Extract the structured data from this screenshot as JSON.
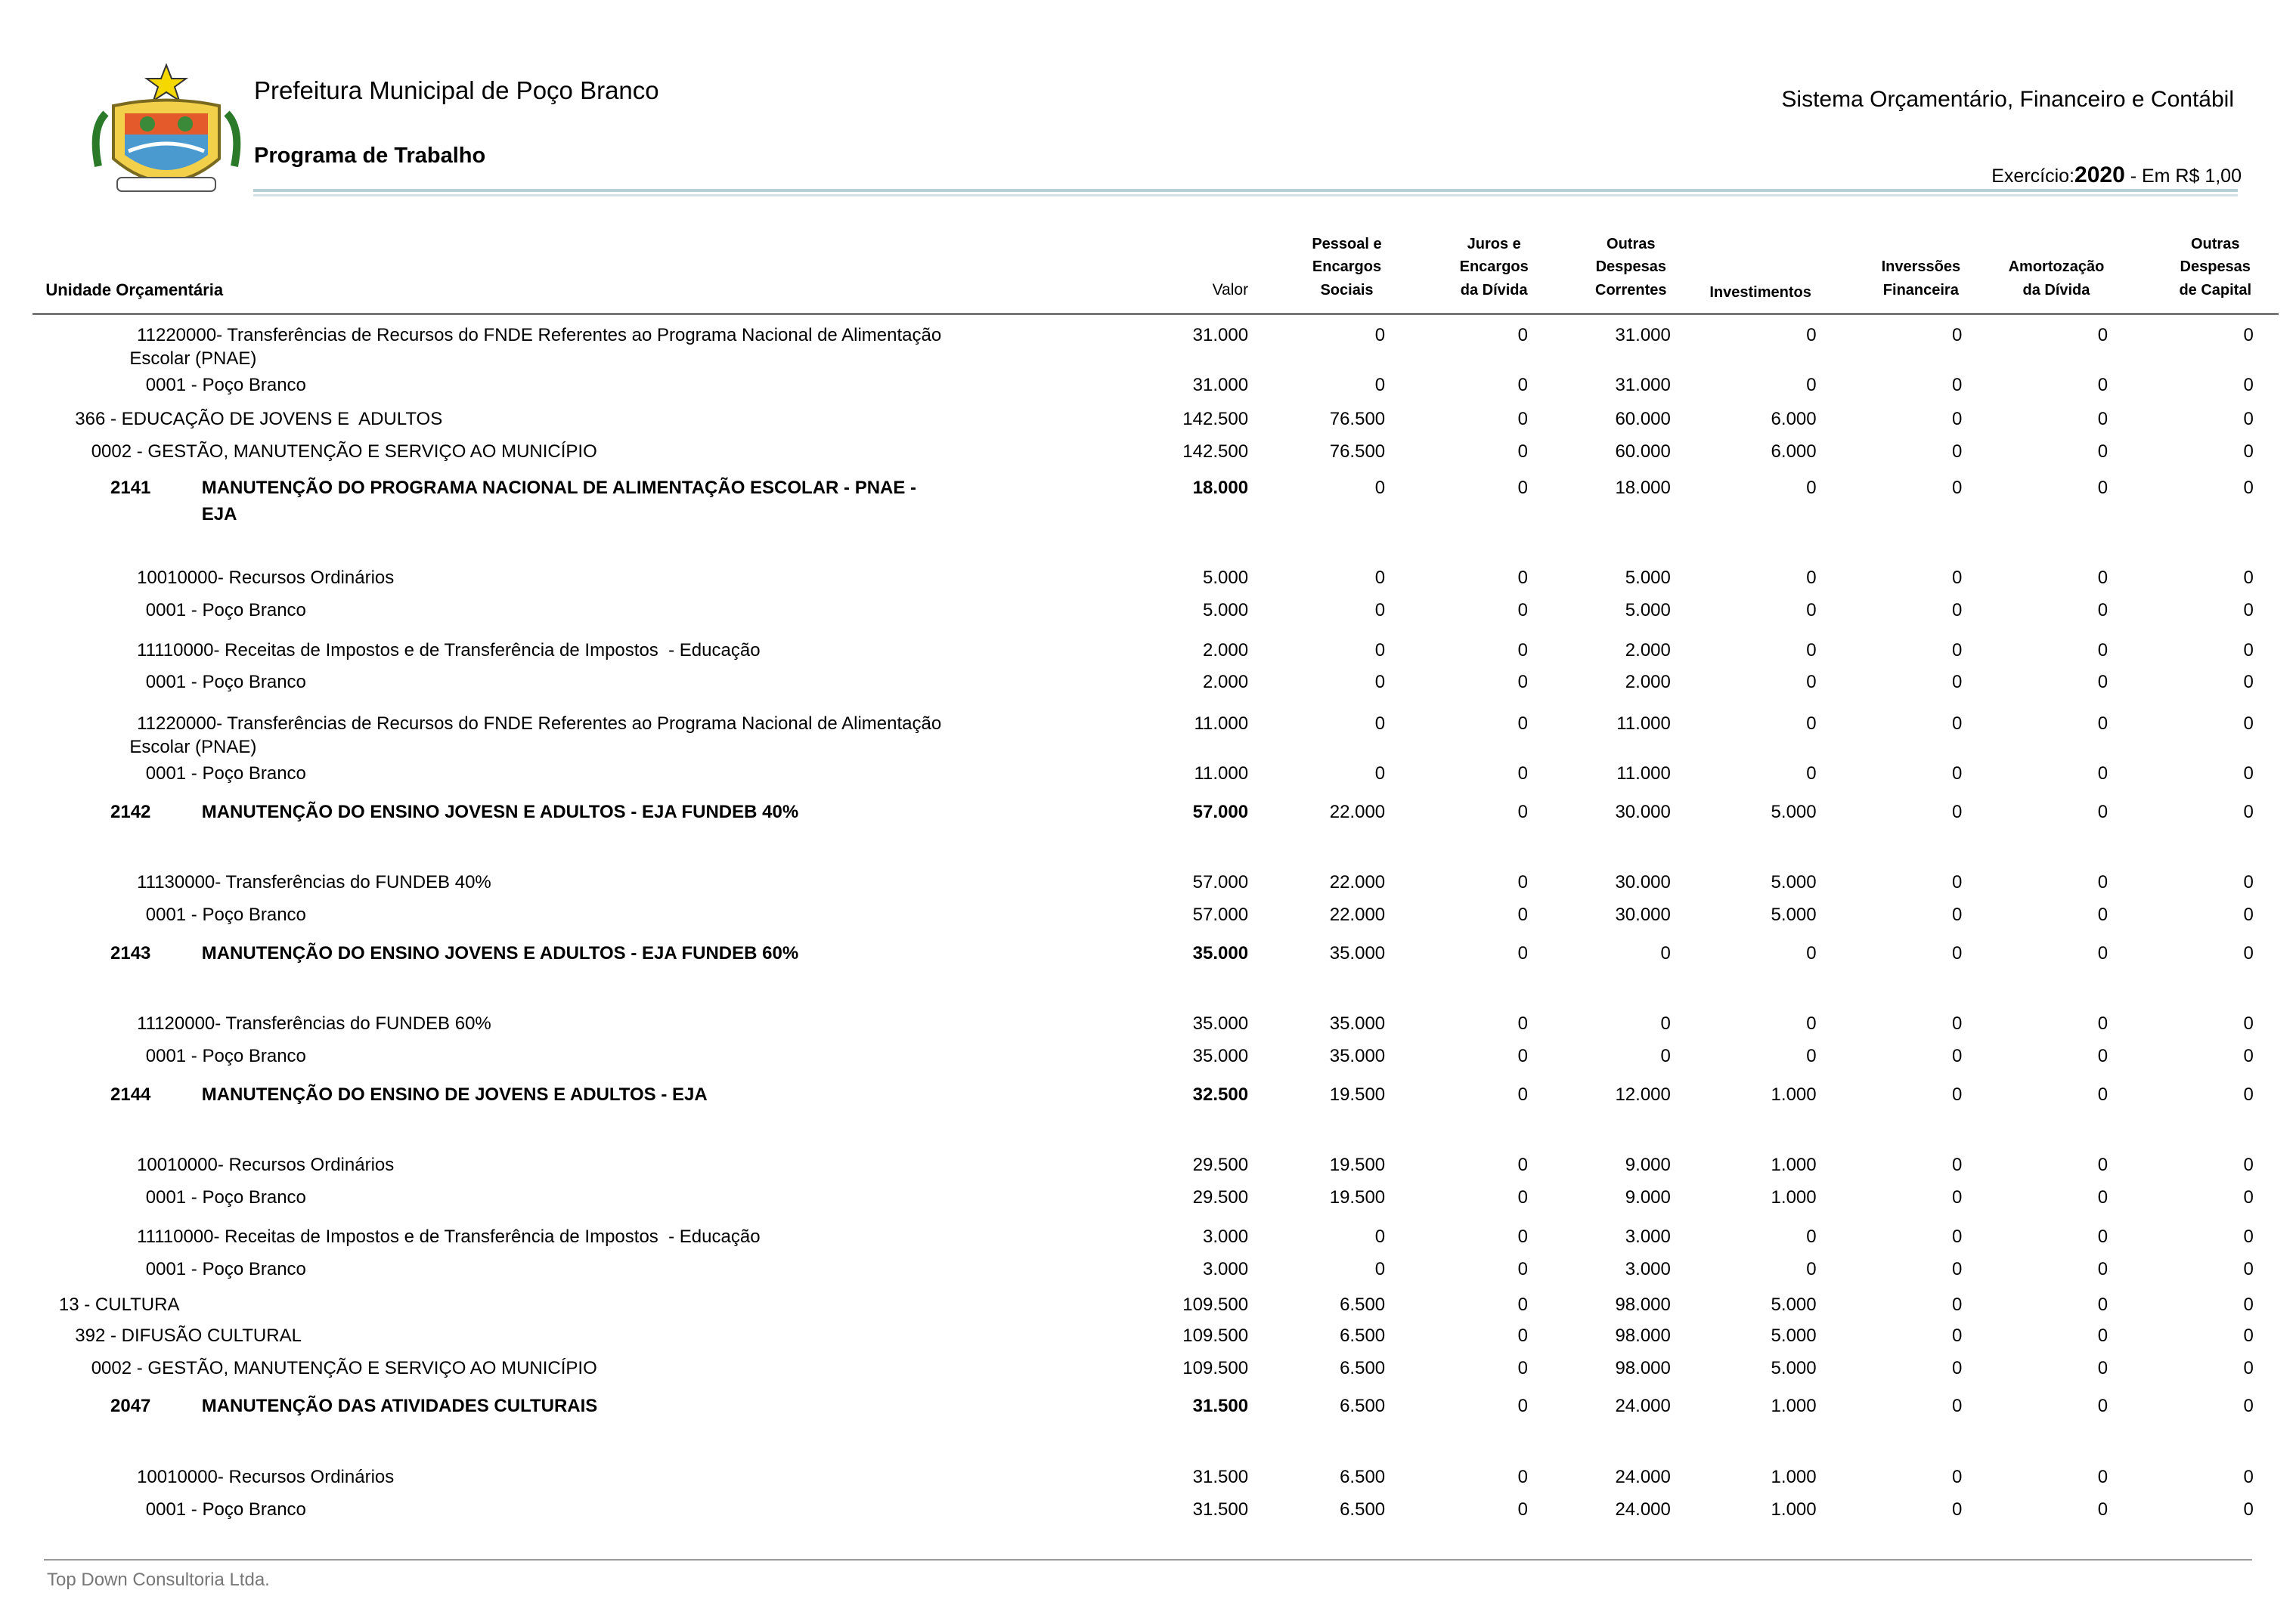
{
  "header": {
    "org": "Prefeitura Municipal de Poço Branco",
    "title": "Programa de Trabalho",
    "system": "Sistema Orçamentário, Financeiro e Contábil",
    "exercise_label": "Exercício:",
    "year": "2020",
    "unit": " - Em R$ 1,00"
  },
  "columns": [
    [
      "Unidade Orçamentária"
    ],
    [
      "Valor"
    ],
    [
      "Pessoal e",
      "Encargos",
      "Sociais"
    ],
    [
      "Juros e",
      "Encargos",
      "da Dívida"
    ],
    [
      "Outras",
      "Despesas",
      "Correntes"
    ],
    [
      "Investimentos"
    ],
    [
      "Inverssões",
      "Financeira"
    ],
    [
      "Amortozação",
      "da Dívida"
    ],
    [
      "Outras",
      "Despesas",
      "de Capital"
    ]
  ],
  "rows": [
    {
      "label": [
        "11220000- Transferências de Recursos do FNDE Referentes ao Programa Nacional de Alimentação",
        "Escolar (PNAE)"
      ],
      "values": [
        "31.000",
        "0",
        "0",
        "31.000",
        "0",
        "0",
        "0",
        "0"
      ]
    },
    {
      "label": "0001 - Poço Branco",
      "values": [
        "31.000",
        "0",
        "0",
        "31.000",
        "0",
        "0",
        "0",
        "0"
      ]
    },
    {
      "label": "366 - EDUCAÇÃO DE JOVENS E  ADULTOS",
      "values": [
        "142.500",
        "76.500",
        "0",
        "60.000",
        "6.000",
        "0",
        "0",
        "0"
      ]
    },
    {
      "label": "0002 - GESTÃO, MANUTENÇÃO E SERVIÇO AO MUNICÍPIO",
      "values": [
        "142.500",
        "76.500",
        "0",
        "60.000",
        "6.000",
        "0",
        "0",
        "0"
      ]
    },
    {
      "code": "2141",
      "label": [
        "MANUTENÇÃO DO PROGRAMA NACIONAL DE ALIMENTAÇÃO ESCOLAR - PNAE -",
        "EJA"
      ],
      "values": [
        "18.000",
        "0",
        "0",
        "18.000",
        "0",
        "0",
        "0",
        "0"
      ]
    },
    {
      "label": "10010000- Recursos Ordinários",
      "values": [
        "5.000",
        "0",
        "0",
        "5.000",
        "0",
        "0",
        "0",
        "0"
      ]
    },
    {
      "label": "0001 - Poço Branco",
      "values": [
        "5.000",
        "0",
        "0",
        "5.000",
        "0",
        "0",
        "0",
        "0"
      ]
    },
    {
      "label": "11110000- Receitas de Impostos e de Transferência de Impostos  - Educação",
      "values": [
        "2.000",
        "0",
        "0",
        "2.000",
        "0",
        "0",
        "0",
        "0"
      ]
    },
    {
      "label": "0001 - Poço Branco",
      "values": [
        "2.000",
        "0",
        "0",
        "2.000",
        "0",
        "0",
        "0",
        "0"
      ]
    },
    {
      "label": [
        "11220000- Transferências de Recursos do FNDE Referentes ao Programa Nacional de Alimentação",
        "Escolar (PNAE)"
      ],
      "values": [
        "11.000",
        "0",
        "0",
        "11.000",
        "0",
        "0",
        "0",
        "0"
      ]
    },
    {
      "label": "0001 - Poço Branco",
      "values": [
        "11.000",
        "0",
        "0",
        "11.000",
        "0",
        "0",
        "0",
        "0"
      ]
    },
    {
      "code": "2142",
      "label": "MANUTENÇÃO DO ENSINO JOVESN E ADULTOS - EJA FUNDEB 40%",
      "values": [
        "57.000",
        "22.000",
        "0",
        "30.000",
        "5.000",
        "0",
        "0",
        "0"
      ]
    },
    {
      "label": "11130000- Transferências do FUNDEB 40%",
      "values": [
        "57.000",
        "22.000",
        "0",
        "30.000",
        "5.000",
        "0",
        "0",
        "0"
      ]
    },
    {
      "label": "0001 - Poço Branco",
      "values": [
        "57.000",
        "22.000",
        "0",
        "30.000",
        "5.000",
        "0",
        "0",
        "0"
      ]
    },
    {
      "code": "2143",
      "label": "MANUTENÇÃO DO ENSINO JOVENS E ADULTOS - EJA FUNDEB 60%",
      "values": [
        "35.000",
        "35.000",
        "0",
        "0",
        "0",
        "0",
        "0",
        "0"
      ]
    },
    {
      "label": "11120000- Transferências do FUNDEB 60%",
      "values": [
        "35.000",
        "35.000",
        "0",
        "0",
        "0",
        "0",
        "0",
        "0"
      ]
    },
    {
      "label": "0001 - Poço Branco",
      "values": [
        "35.000",
        "35.000",
        "0",
        "0",
        "0",
        "0",
        "0",
        "0"
      ]
    },
    {
      "code": "2144",
      "label": "MANUTENÇÃO DO ENSINO DE JOVENS E ADULTOS - EJA",
      "values": [
        "32.500",
        "19.500",
        "0",
        "12.000",
        "1.000",
        "0",
        "0",
        "0"
      ]
    },
    {
      "label": "10010000- Recursos Ordinários",
      "values": [
        "29.500",
        "19.500",
        "0",
        "9.000",
        "1.000",
        "0",
        "0",
        "0"
      ]
    },
    {
      "label": "0001 - Poço Branco",
      "values": [
        "29.500",
        "19.500",
        "0",
        "9.000",
        "1.000",
        "0",
        "0",
        "0"
      ]
    },
    {
      "label": "11110000- Receitas de Impostos e de Transferência de Impostos  - Educação",
      "values": [
        "3.000",
        "0",
        "0",
        "3.000",
        "0",
        "0",
        "0",
        "0"
      ]
    },
    {
      "label": "0001 - Poço Branco",
      "values": [
        "3.000",
        "0",
        "0",
        "3.000",
        "0",
        "0",
        "0",
        "0"
      ]
    },
    {
      "label": "13 - CULTURA",
      "values": [
        "109.500",
        "6.500",
        "0",
        "98.000",
        "5.000",
        "0",
        "0",
        "0"
      ]
    },
    {
      "label": "392 - DIFUSÃO CULTURAL",
      "values": [
        "109.500",
        "6.500",
        "0",
        "98.000",
        "5.000",
        "0",
        "0",
        "0"
      ]
    },
    {
      "label": "0002 - GESTÃO, MANUTENÇÃO E SERVIÇO AO MUNICÍPIO",
      "values": [
        "109.500",
        "6.500",
        "0",
        "98.000",
        "5.000",
        "0",
        "0",
        "0"
      ]
    },
    {
      "code": "2047",
      "label": "MANUTENÇÃO DAS ATIVIDADES CULTURAIS",
      "values": [
        "31.500",
        "6.500",
        "0",
        "24.000",
        "1.000",
        "0",
        "0",
        "0"
      ]
    },
    {
      "label": "10010000- Recursos Ordinários",
      "values": [
        "31.500",
        "6.500",
        "0",
        "24.000",
        "1.000",
        "0",
        "0",
        "0"
      ]
    },
    {
      "label": "0001 - Poço Branco",
      "values": [
        "31.500",
        "6.500",
        "0",
        "24.000",
        "1.000",
        "0",
        "0",
        "0"
      ]
    }
  ],
  "footer": "Top Down Consultoria Ltda."
}
